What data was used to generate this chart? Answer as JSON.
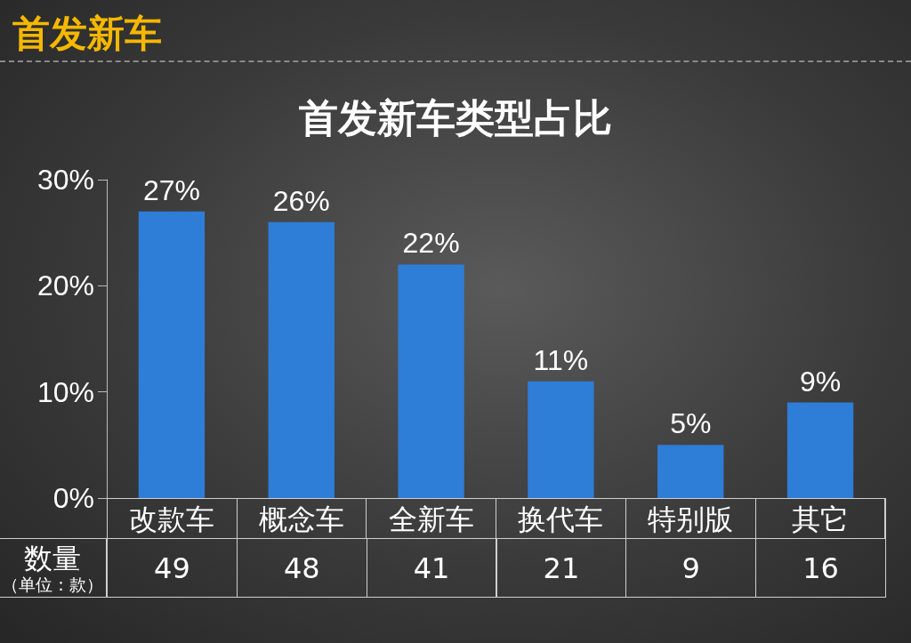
{
  "chart_data": {
    "type": "bar",
    "title": "首发新车",
    "subtitle": "首发新车类型占比",
    "categories": [
      "改款车",
      "概念车",
      "全新车",
      "换代车",
      "特别版",
      "其它"
    ],
    "values": [
      27,
      26,
      22,
      11,
      5,
      9
    ],
    "color": "#2e7dd7",
    "value_labels": [
      "27%",
      "26%",
      "22%",
      "11%",
      "5%",
      "9%"
    ],
    "ylim": [
      0,
      30
    ],
    "yticks": [
      {
        "value": 0,
        "label": "0%"
      },
      {
        "value": 10,
        "label": "10%"
      },
      {
        "value": 20,
        "label": "20%"
      },
      {
        "value": 30,
        "label": "30%"
      }
    ],
    "grid": false,
    "annotations": [
      "数量",
      "（单位：款）",
      "49",
      "48",
      "41",
      "21",
      "9",
      "16"
    ]
  }
}
